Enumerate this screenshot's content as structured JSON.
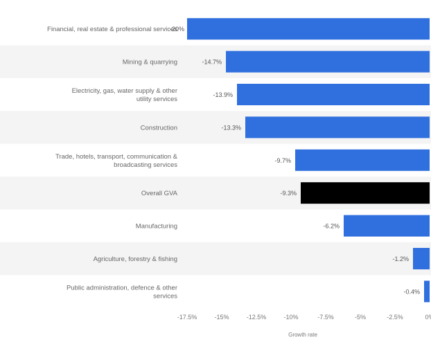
{
  "chart_data": {
    "type": "bar",
    "orientation": "horizontal",
    "categories": [
      "Financial, real estate & professional services",
      "Mining & quarrying",
      "Electricity, gas, water supply & other utility services",
      "Construction",
      "Trade, hotels, transport, communication & broadcasting services",
      "Overall GVA",
      "Manufacturing",
      "Agriculture, forestry & fishing",
      "Public administration, defence & other services"
    ],
    "values": [
      -20,
      -14.7,
      -13.9,
      -13.3,
      -9.7,
      -9.3,
      -6.2,
      -1.2,
      -0.4
    ],
    "value_labels": [
      "-20%",
      "-14.7%",
      "-13.9%",
      "-13.3%",
      "-9.7%",
      "-9.3%",
      "-6.2%",
      "-1.2%",
      "-0.4%"
    ],
    "bar_colors": [
      "#2f6fde",
      "#2f6fde",
      "#2f6fde",
      "#2f6fde",
      "#2f6fde",
      "#000000",
      "#2f6fde",
      "#2f6fde",
      "#2f6fde"
    ],
    "xlim": [
      -17.5,
      0
    ],
    "xticks": [
      -17.5,
      -15,
      -12.5,
      -10,
      -7.5,
      -5,
      -2.5,
      0
    ],
    "xtick_labels": [
      "-17.5%",
      "-15%",
      "-12.5%",
      "-10%",
      "-7.5%",
      "-5%",
      "-2.5%",
      "0%"
    ],
    "xlabel": "Growth rate",
    "ylabel": "",
    "grid": false,
    "colors": {
      "primary": "#2f6fde",
      "highlight": "#000000",
      "stripe": "#f4f4f4"
    }
  }
}
